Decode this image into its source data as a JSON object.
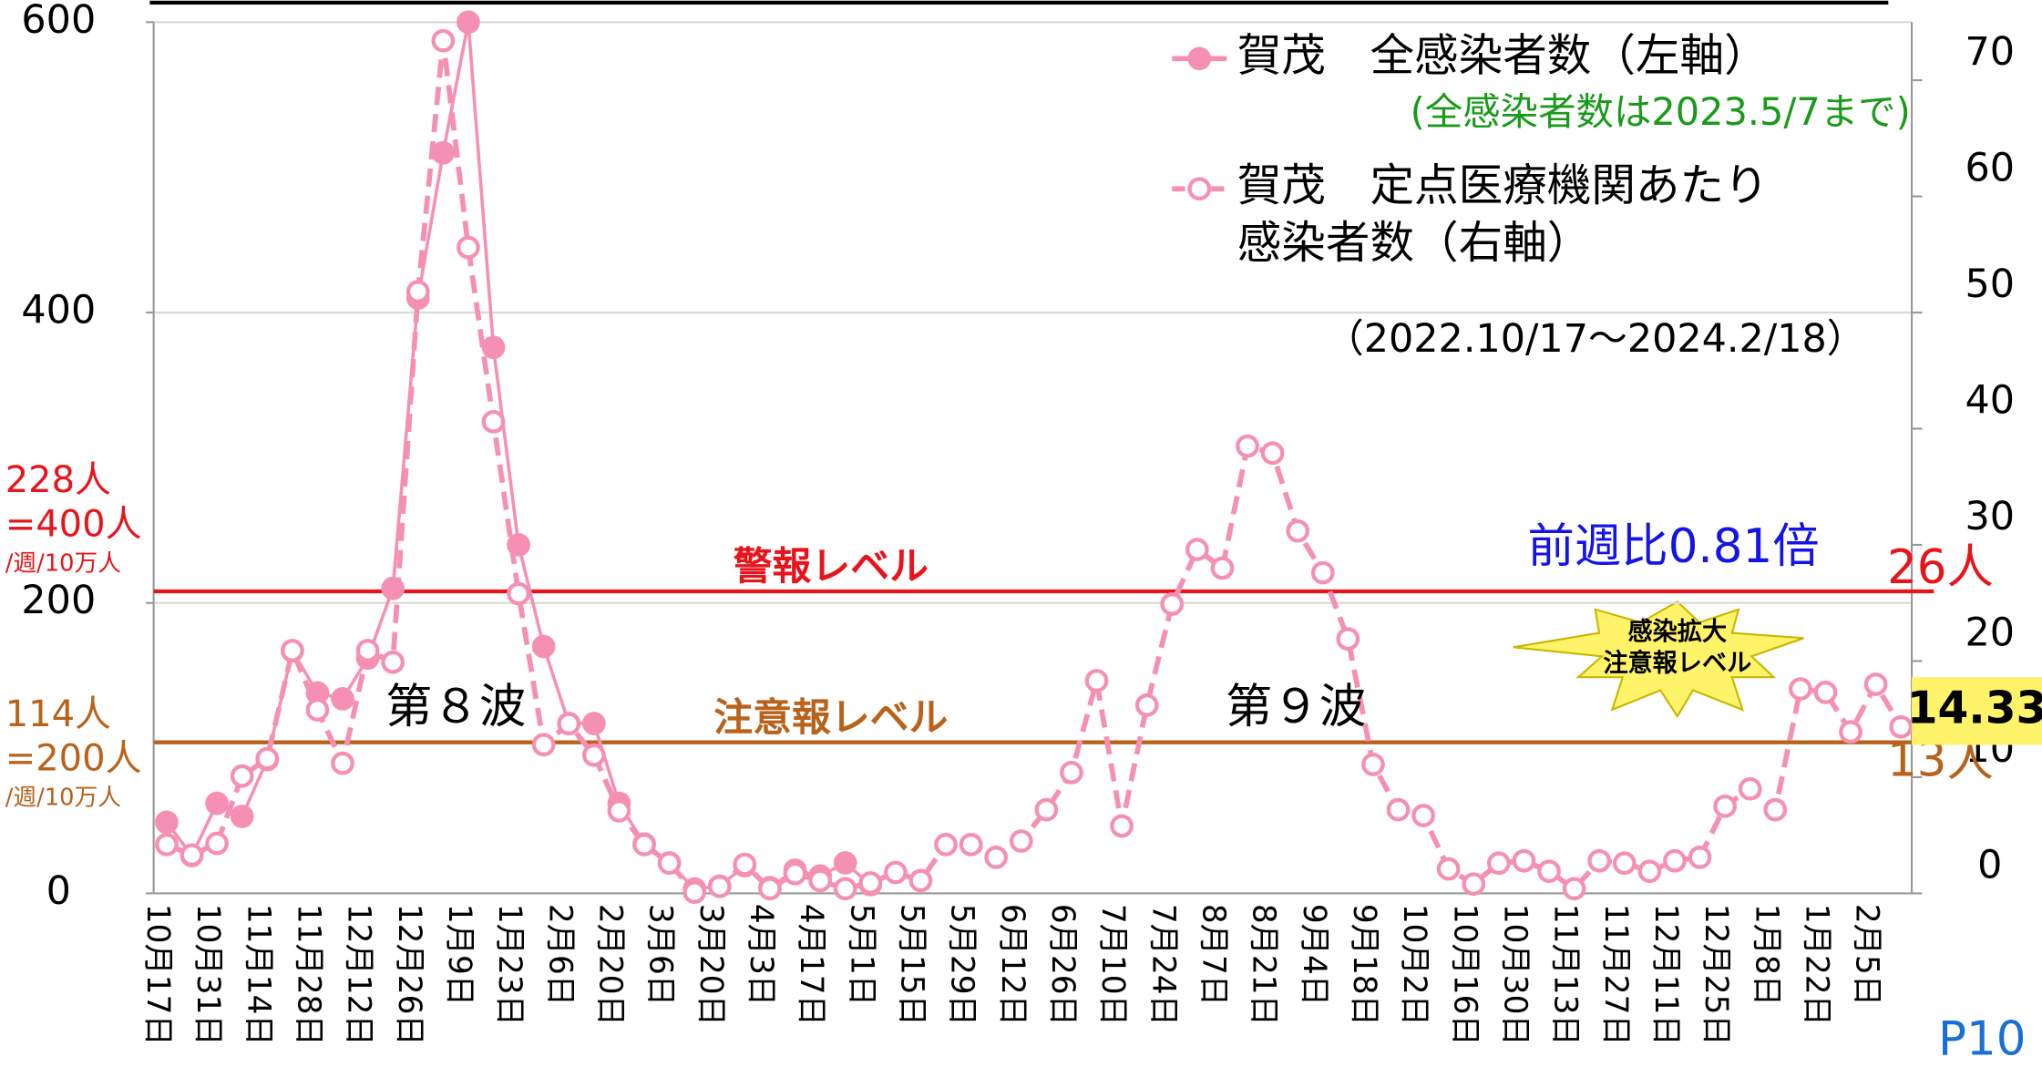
{
  "chart_data": {
    "type": "line",
    "categories": [
      "10月17日",
      null,
      "10月31日",
      null,
      "11月14日",
      null,
      "11月28日",
      null,
      "12月12日",
      null,
      "12月26日",
      null,
      "1月9日",
      null,
      "1月23日",
      null,
      "2月6日",
      null,
      "2月20日",
      null,
      "3月6日",
      null,
      "3月20日",
      null,
      "4月3日",
      null,
      "4月17日",
      null,
      "5月1日",
      null,
      "5月15日",
      null,
      "5月29日",
      null,
      "6月12日",
      null,
      "6月26日",
      null,
      "7月10日",
      null,
      "7月24日",
      null,
      "8月7日",
      null,
      "8月21日",
      null,
      "9月4日",
      null,
      "9月18日",
      null,
      "10月2日",
      null,
      "10月16日",
      null,
      "10月30日",
      null,
      "11月13日",
      null,
      "11月27日",
      null,
      "12月11日",
      null,
      "12月25日",
      null,
      "1月8日",
      null,
      "1月22日",
      null,
      "2月5日",
      null
    ],
    "series": [
      {
        "name": "賀茂　全感染者数（左軸）",
        "color": "#f590b4",
        "marker": "filled",
        "values": [
          49,
          26,
          62,
          53,
          92,
          167,
          138,
          134,
          162,
          210,
          410,
          510,
          600,
          376,
          240,
          170,
          117,
          117,
          62,
          34,
          21,
          3,
          5,
          19,
          4,
          16,
          12,
          21,
          6,
          null,
          null,
          null,
          null,
          null,
          null,
          null,
          null,
          null,
          null,
          null,
          null,
          null,
          null,
          null,
          null,
          null,
          null,
          null,
          null,
          null,
          null,
          null,
          null,
          null,
          null,
          null,
          null,
          null,
          null,
          null,
          null,
          null,
          null,
          null,
          null,
          null,
          null,
          null,
          null,
          null
        ]
      },
      {
        "name": "賀茂　定点医療機関あたり\n感染者数（右軸）",
        "color": "#f590b4",
        "marker": "hollow",
        "dashed": true,
        "axis": "y2",
        "values": [
          4.2,
          3.3,
          4.3,
          10.1,
          11.6,
          20.9,
          15.8,
          11.2,
          20.9,
          19.9,
          51.8,
          73.4,
          55.6,
          40.6,
          25.8,
          12.8,
          14.6,
          11.9,
          7.1,
          4.2,
          2.6,
          0.1,
          0.6,
          2.5,
          0.4,
          1.7,
          1.1,
          0.4,
          0.9,
          1.8,
          1.1,
          4.2,
          4.2,
          3.1,
          4.5,
          7.2,
          10.4,
          18.3,
          5.8,
          16.2,
          24.9,
          29.6,
          28.0,
          38.5,
          37.9,
          31.2,
          27.6,
          21.9,
          11.1,
          7.2,
          6.7,
          2.1,
          0.8,
          2.6,
          2.8,
          1.9,
          0.4,
          2.8,
          2.6,
          1.9,
          2.8,
          3.1,
          7.5,
          9.0,
          7.2,
          17.6,
          17.3,
          13.9,
          18.0,
          14.33
        ]
      }
    ],
    "ylim": [
      0,
      600
    ],
    "yticks": [
      0,
      200,
      400,
      600
    ],
    "y2lim": [
      0,
      75
    ],
    "y2ticks": [
      0,
      10,
      20,
      30,
      40,
      50,
      60,
      70
    ],
    "grid": true,
    "thresholds": [
      {
        "name": "警報レベル",
        "value": 26,
        "value_label": "26人",
        "color": "#e8141c",
        "notes": [
          "228人",
          "=400人",
          "/週/10万人"
        ]
      },
      {
        "name": "注意報レベル",
        "value": 13,
        "value_label": "13人",
        "color": "#b8621b",
        "notes": [
          "114人",
          "=200人",
          "/週/10万人"
        ]
      }
    ],
    "annotations": {
      "wave8": "第８波",
      "wave9": "第９波",
      "legend_note": "(全感染者数は2023.5/7まで)",
      "period": "（2022.10/17～2024.2/18）",
      "ratio": "前週比0.81倍",
      "badge": [
        "感染拡大",
        "注意報レベル"
      ],
      "page": "P10"
    }
  }
}
